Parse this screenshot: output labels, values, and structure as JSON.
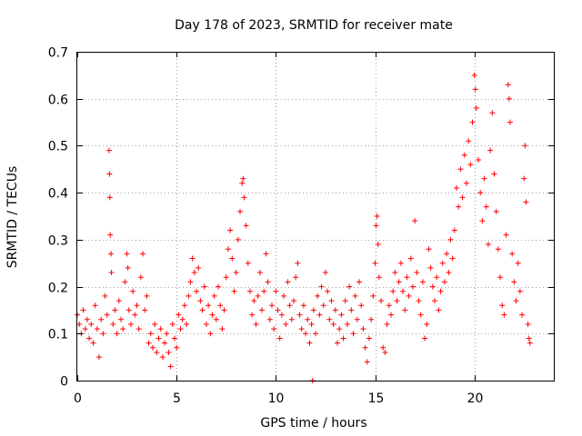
{
  "chart_data": {
    "type": "scatter",
    "title": "Day 178 of 2023, SRMTID for receiver mate",
    "xlabel": "GPS time / hours",
    "ylabel": "SRMTID / TECUs",
    "xlim": [
      0,
      24
    ],
    "ylim": [
      0,
      0.7
    ],
    "xticks": [
      0,
      5,
      10,
      15,
      20
    ],
    "yticks": [
      0,
      0.1,
      0.2,
      0.3,
      0.4,
      0.5,
      0.6,
      0.7
    ],
    "xtick_labels": [
      "0",
      "5",
      "10",
      "15",
      "20"
    ],
    "ytick_labels": [
      "0",
      "0.1",
      "0.2",
      "0.3",
      "0.4",
      "0.5",
      "0.6",
      "0.7"
    ],
    "grid": true,
    "marker": "+",
    "color": "#ff0000",
    "series": [
      {
        "name": "SRMTID",
        "points": [
          [
            0.0,
            0.14
          ],
          [
            0.1,
            0.12
          ],
          [
            0.2,
            0.1
          ],
          [
            0.3,
            0.15
          ],
          [
            0.4,
            0.11
          ],
          [
            0.5,
            0.13
          ],
          [
            0.6,
            0.09
          ],
          [
            0.7,
            0.12
          ],
          [
            0.8,
            0.08
          ],
          [
            0.9,
            0.16
          ],
          [
            1.0,
            0.11
          ],
          [
            1.1,
            0.05
          ],
          [
            1.2,
            0.13
          ],
          [
            1.3,
            0.1
          ],
          [
            1.4,
            0.18
          ],
          [
            1.5,
            0.14
          ],
          [
            1.6,
            0.49
          ],
          [
            1.62,
            0.44
          ],
          [
            1.64,
            0.39
          ],
          [
            1.66,
            0.31
          ],
          [
            1.7,
            0.27
          ],
          [
            1.72,
            0.23
          ],
          [
            1.8,
            0.12
          ],
          [
            1.9,
            0.15
          ],
          [
            2.0,
            0.1
          ],
          [
            2.1,
            0.17
          ],
          [
            2.2,
            0.13
          ],
          [
            2.3,
            0.11
          ],
          [
            2.4,
            0.21
          ],
          [
            2.5,
            0.27
          ],
          [
            2.55,
            0.24
          ],
          [
            2.6,
            0.15
          ],
          [
            2.7,
            0.12
          ],
          [
            2.8,
            0.19
          ],
          [
            2.9,
            0.14
          ],
          [
            3.0,
            0.16
          ],
          [
            3.1,
            0.11
          ],
          [
            3.2,
            0.22
          ],
          [
            3.3,
            0.27
          ],
          [
            3.4,
            0.15
          ],
          [
            3.5,
            0.18
          ],
          [
            3.6,
            0.08
          ],
          [
            3.7,
            0.1
          ],
          [
            3.8,
            0.07
          ],
          [
            3.9,
            0.12
          ],
          [
            4.0,
            0.06
          ],
          [
            4.1,
            0.09
          ],
          [
            4.2,
            0.11
          ],
          [
            4.3,
            0.05
          ],
          [
            4.4,
            0.08
          ],
          [
            4.5,
            0.1
          ],
          [
            4.6,
            0.06
          ],
          [
            4.7,
            0.03
          ],
          [
            4.8,
            0.12
          ],
          [
            4.9,
            0.09
          ],
          [
            5.0,
            0.07
          ],
          [
            5.1,
            0.14
          ],
          [
            5.2,
            0.11
          ],
          [
            5.3,
            0.13
          ],
          [
            5.4,
            0.16
          ],
          [
            5.5,
            0.12
          ],
          [
            5.6,
            0.18
          ],
          [
            5.7,
            0.21
          ],
          [
            5.8,
            0.26
          ],
          [
            5.9,
            0.23
          ],
          [
            6.0,
            0.19
          ],
          [
            6.1,
            0.24
          ],
          [
            6.2,
            0.17
          ],
          [
            6.3,
            0.15
          ],
          [
            6.4,
            0.2
          ],
          [
            6.5,
            0.12
          ],
          [
            6.6,
            0.16
          ],
          [
            6.7,
            0.1
          ],
          [
            6.8,
            0.14
          ],
          [
            6.9,
            0.18
          ],
          [
            7.0,
            0.13
          ],
          [
            7.1,
            0.2
          ],
          [
            7.2,
            0.16
          ],
          [
            7.3,
            0.11
          ],
          [
            7.4,
            0.15
          ],
          [
            7.5,
            0.22
          ],
          [
            7.6,
            0.28
          ],
          [
            7.7,
            0.32
          ],
          [
            7.8,
            0.26
          ],
          [
            7.9,
            0.19
          ],
          [
            8.0,
            0.23
          ],
          [
            8.1,
            0.3
          ],
          [
            8.2,
            0.36
          ],
          [
            8.3,
            0.42
          ],
          [
            8.35,
            0.43
          ],
          [
            8.4,
            0.39
          ],
          [
            8.5,
            0.33
          ],
          [
            8.6,
            0.25
          ],
          [
            8.7,
            0.19
          ],
          [
            8.8,
            0.14
          ],
          [
            8.9,
            0.17
          ],
          [
            9.0,
            0.12
          ],
          [
            9.1,
            0.18
          ],
          [
            9.2,
            0.23
          ],
          [
            9.3,
            0.15
          ],
          [
            9.4,
            0.19
          ],
          [
            9.5,
            0.27
          ],
          [
            9.6,
            0.21
          ],
          [
            9.7,
            0.13
          ],
          [
            9.8,
            0.16
          ],
          [
            9.9,
            0.11
          ],
          [
            10.0,
            0.19
          ],
          [
            10.1,
            0.15
          ],
          [
            10.2,
            0.09
          ],
          [
            10.3,
            0.14
          ],
          [
            10.4,
            0.18
          ],
          [
            10.5,
            0.12
          ],
          [
            10.6,
            0.21
          ],
          [
            10.7,
            0.16
          ],
          [
            10.8,
            0.13
          ],
          [
            10.9,
            0.17
          ],
          [
            11.0,
            0.22
          ],
          [
            11.1,
            0.25
          ],
          [
            11.2,
            0.14
          ],
          [
            11.3,
            0.11
          ],
          [
            11.4,
            0.16
          ],
          [
            11.5,
            0.1
          ],
          [
            11.6,
            0.13
          ],
          [
            11.7,
            0.08
          ],
          [
            11.8,
            0.12
          ],
          [
            11.85,
            0.0
          ],
          [
            11.9,
            0.15
          ],
          [
            12.0,
            0.1
          ],
          [
            12.1,
            0.18
          ],
          [
            12.2,
            0.14
          ],
          [
            12.3,
            0.2
          ],
          [
            12.4,
            0.16
          ],
          [
            12.5,
            0.23
          ],
          [
            12.6,
            0.19
          ],
          [
            12.7,
            0.13
          ],
          [
            12.8,
            0.17
          ],
          [
            12.9,
            0.12
          ],
          [
            13.0,
            0.15
          ],
          [
            13.1,
            0.08
          ],
          [
            13.2,
            0.11
          ],
          [
            13.3,
            0.14
          ],
          [
            13.4,
            0.09
          ],
          [
            13.5,
            0.17
          ],
          [
            13.6,
            0.12
          ],
          [
            13.7,
            0.2
          ],
          [
            13.8,
            0.15
          ],
          [
            13.9,
            0.1
          ],
          [
            14.0,
            0.18
          ],
          [
            14.1,
            0.13
          ],
          [
            14.2,
            0.21
          ],
          [
            14.3,
            0.16
          ],
          [
            14.4,
            0.11
          ],
          [
            14.5,
            0.07
          ],
          [
            14.6,
            0.04
          ],
          [
            14.7,
            0.09
          ],
          [
            14.8,
            0.13
          ],
          [
            14.9,
            0.18
          ],
          [
            15.0,
            0.25
          ],
          [
            15.05,
            0.33
          ],
          [
            15.1,
            0.35
          ],
          [
            15.15,
            0.29
          ],
          [
            15.2,
            0.22
          ],
          [
            15.3,
            0.17
          ],
          [
            15.4,
            0.07
          ],
          [
            15.5,
            0.06
          ],
          [
            15.6,
            0.12
          ],
          [
            15.7,
            0.16
          ],
          [
            15.8,
            0.14
          ],
          [
            15.9,
            0.19
          ],
          [
            16.0,
            0.23
          ],
          [
            16.1,
            0.17
          ],
          [
            16.2,
            0.21
          ],
          [
            16.3,
            0.25
          ],
          [
            16.4,
            0.19
          ],
          [
            16.5,
            0.15
          ],
          [
            16.6,
            0.22
          ],
          [
            16.7,
            0.18
          ],
          [
            16.8,
            0.26
          ],
          [
            16.9,
            0.2
          ],
          [
            17.0,
            0.34
          ],
          [
            17.1,
            0.23
          ],
          [
            17.2,
            0.17
          ],
          [
            17.3,
            0.14
          ],
          [
            17.4,
            0.21
          ],
          [
            17.5,
            0.09
          ],
          [
            17.6,
            0.12
          ],
          [
            17.7,
            0.28
          ],
          [
            17.8,
            0.24
          ],
          [
            17.9,
            0.2
          ],
          [
            18.0,
            0.17
          ],
          [
            18.1,
            0.22
          ],
          [
            18.2,
            0.15
          ],
          [
            18.3,
            0.19
          ],
          [
            18.4,
            0.25
          ],
          [
            18.5,
            0.21
          ],
          [
            18.6,
            0.27
          ],
          [
            18.7,
            0.23
          ],
          [
            18.8,
            0.3
          ],
          [
            18.9,
            0.26
          ],
          [
            19.0,
            0.32
          ],
          [
            19.1,
            0.41
          ],
          [
            19.2,
            0.37
          ],
          [
            19.3,
            0.45
          ],
          [
            19.4,
            0.39
          ],
          [
            19.5,
            0.48
          ],
          [
            19.6,
            0.42
          ],
          [
            19.7,
            0.51
          ],
          [
            19.8,
            0.46
          ],
          [
            19.9,
            0.55
          ],
          [
            20.0,
            0.65
          ],
          [
            20.05,
            0.62
          ],
          [
            20.1,
            0.58
          ],
          [
            20.2,
            0.47
          ],
          [
            20.3,
            0.4
          ],
          [
            20.4,
            0.34
          ],
          [
            20.5,
            0.43
          ],
          [
            20.6,
            0.37
          ],
          [
            20.7,
            0.29
          ],
          [
            20.8,
            0.49
          ],
          [
            20.9,
            0.57
          ],
          [
            21.0,
            0.44
          ],
          [
            21.1,
            0.36
          ],
          [
            21.2,
            0.28
          ],
          [
            21.3,
            0.22
          ],
          [
            21.4,
            0.16
          ],
          [
            21.5,
            0.14
          ],
          [
            21.6,
            0.31
          ],
          [
            21.7,
            0.63
          ],
          [
            21.75,
            0.6
          ],
          [
            21.8,
            0.55
          ],
          [
            21.9,
            0.27
          ],
          [
            22.0,
            0.21
          ],
          [
            22.1,
            0.17
          ],
          [
            22.2,
            0.25
          ],
          [
            22.3,
            0.19
          ],
          [
            22.4,
            0.14
          ],
          [
            22.5,
            0.43
          ],
          [
            22.55,
            0.5
          ],
          [
            22.6,
            0.38
          ],
          [
            22.7,
            0.12
          ],
          [
            22.75,
            0.09
          ],
          [
            22.8,
            0.08
          ]
        ]
      }
    ]
  }
}
